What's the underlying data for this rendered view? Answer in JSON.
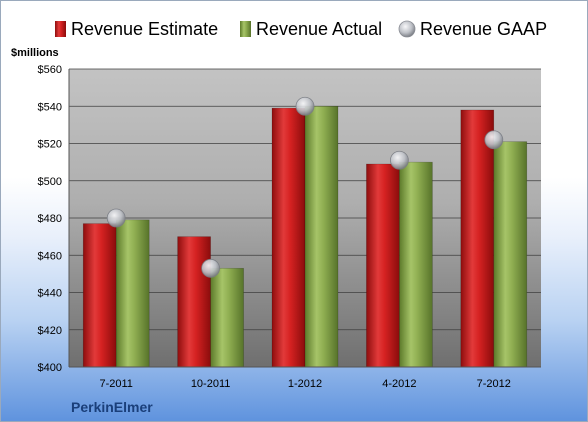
{
  "chart_data": {
    "type": "bar",
    "ylabel": "$millions",
    "ylim": [
      400,
      560
    ],
    "ytick_step": 20,
    "ytick_labels": [
      "$400",
      "$420",
      "$440",
      "$460",
      "$480",
      "$500",
      "$520",
      "$540",
      "$560"
    ],
    "categories": [
      "7-2011",
      "10-2011",
      "1-2012",
      "4-2012",
      "7-2012"
    ],
    "series": [
      {
        "name": "Revenue Estimate",
        "kind": "bar",
        "color": "#cc1f1f",
        "values": [
          477,
          470,
          539,
          509,
          538
        ]
      },
      {
        "name": "Revenue Actual",
        "kind": "bar",
        "color": "#8aaa4a",
        "values": [
          479,
          453,
          540,
          510,
          521
        ]
      },
      {
        "name": "Revenue GAAP",
        "kind": "marker",
        "color": "#b8bcc4",
        "values": [
          480,
          453,
          540,
          511,
          522
        ]
      }
    ],
    "legend_position": "top",
    "grid": true,
    "company": "PerkinElmer"
  }
}
